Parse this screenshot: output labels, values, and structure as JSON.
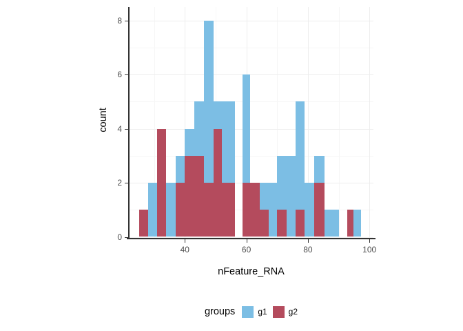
{
  "chart_data": {
    "type": "histogram",
    "xlabel": "nFeature_RNA",
    "ylabel": "count",
    "x_ticks": [
      40,
      60,
      80,
      100
    ],
    "x_minor_ticks": [
      30,
      50,
      70,
      90
    ],
    "y_ticks": [
      0,
      2,
      4,
      6,
      8
    ],
    "y_minor_ticks": [
      1,
      3,
      5,
      7
    ],
    "x_range": [
      21.8,
      101.3
    ],
    "y_range": [
      0,
      8.5
    ],
    "grid": true,
    "binwidth_approx": 3,
    "series_names": [
      "g1",
      "g2"
    ],
    "bars": [
      {
        "x0": 25.2,
        "x1": 28.0,
        "g1": 0,
        "g2": 1
      },
      {
        "x0": 28.0,
        "x1": 31.0,
        "g1": 2,
        "g2": 0
      },
      {
        "x0": 31.0,
        "x1": 34.0,
        "g1": 0,
        "g2": 4
      },
      {
        "x0": 34.0,
        "x1": 37.0,
        "g1": 2,
        "g2": 0
      },
      {
        "x0": 37.0,
        "x1": 40.0,
        "g1": 3,
        "g2": 2
      },
      {
        "x0": 40.0,
        "x1": 43.0,
        "g1": 4,
        "g2": 3
      },
      {
        "x0": 43.0,
        "x1": 46.2,
        "g1": 5,
        "g2": 3
      },
      {
        "x0": 46.2,
        "x1": 49.3,
        "g1": 8,
        "g2": 2
      },
      {
        "x0": 49.3,
        "x1": 52.0,
        "g1": 5,
        "g2": 4
      },
      {
        "x0": 52.0,
        "x1": 56.4,
        "g1": 5,
        "g2": 2
      },
      {
        "x0": 58.7,
        "x1": 61.3,
        "g1": 6,
        "g2": 2
      },
      {
        "x0": 61.3,
        "x1": 64.3,
        "g1": 0,
        "g2": 2
      },
      {
        "x0": 64.3,
        "x1": 67.3,
        "g1": 2,
        "g2": 1
      },
      {
        "x0": 67.3,
        "x1": 70.0,
        "g1": 2,
        "g2": 0
      },
      {
        "x0": 70.0,
        "x1": 73.0,
        "g1": 3,
        "g2": 1
      },
      {
        "x0": 73.0,
        "x1": 76.0,
        "g1": 3,
        "g2": 0
      },
      {
        "x0": 76.0,
        "x1": 79.0,
        "g1": 5,
        "g2": 1
      },
      {
        "x0": 79.0,
        "x1": 82.0,
        "g1": 2,
        "g2": 0
      },
      {
        "x0": 82.0,
        "x1": 85.3,
        "g1": 3,
        "g2": 2
      },
      {
        "x0": 85.3,
        "x1": 87.7,
        "g1": 1,
        "g2": 0
      },
      {
        "x0": 87.7,
        "x1": 90.0,
        "g1": 1,
        "g2": 0
      },
      {
        "x0": 92.7,
        "x1": 94.9,
        "g1": 0,
        "g2": 1
      },
      {
        "x0": 94.9,
        "x1": 97.3,
        "g1": 1,
        "g2": 0
      }
    ],
    "legend": {
      "title": "groups",
      "position": "bottom",
      "items": [
        {
          "label": "g1",
          "color": "#7CBEE4"
        },
        {
          "label": "g2",
          "color": "#B44B5D"
        }
      ]
    },
    "colors": {
      "g1": "#7CBEE4",
      "g2": "#B44B5D",
      "axis_line": "#333333",
      "tick_text": "#4d4d4d",
      "grid_major": "#EDEDED",
      "grid_minor": "#F6F6F6",
      "panel_bg": "#FFFFFF"
    }
  }
}
